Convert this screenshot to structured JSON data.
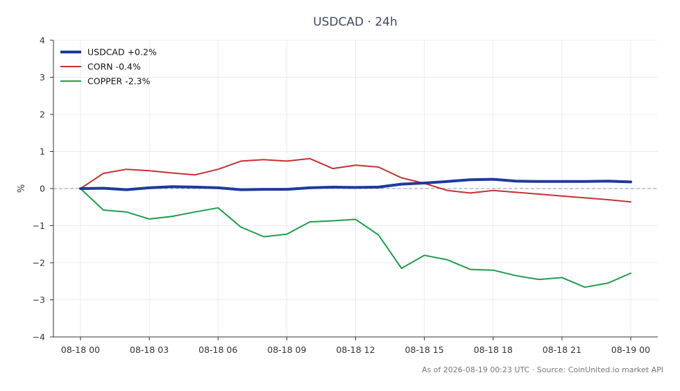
{
  "chart_data": {
    "type": "line",
    "title": "USDCAD · 24h",
    "xlabel": "",
    "ylabel": "%",
    "ylim": [
      -4,
      4
    ],
    "yticks": [
      "4",
      "3",
      "2",
      "1",
      "0",
      "−1",
      "−2",
      "−3",
      "−4"
    ],
    "xtick_labels": [
      "08-18 00",
      "08-18 03",
      "08-18 06",
      "08-18 09",
      "08-18 12",
      "08-18 15",
      "08-18 18",
      "08-18 21",
      "08-19 00"
    ],
    "x_hours": [
      0,
      1,
      2,
      3,
      4,
      5,
      6,
      7,
      8,
      9,
      10,
      11,
      12,
      13,
      14,
      15,
      16,
      17,
      18,
      19,
      20,
      21,
      22,
      23,
      24
    ],
    "grid": true,
    "legend_position": "top-left",
    "baseline": 0,
    "series": [
      {
        "name": "USDCAD +0.2%",
        "color": "#1f3a9c",
        "values": [
          0.0,
          0.01,
          -0.03,
          0.02,
          0.05,
          0.04,
          0.02,
          -0.03,
          -0.02,
          -0.02,
          0.02,
          0.04,
          0.03,
          0.04,
          0.12,
          0.15,
          0.19,
          0.24,
          0.25,
          0.2,
          0.19,
          0.19,
          0.19,
          0.2,
          0.18
        ]
      },
      {
        "name": "CORN -0.4%",
        "color": "#c62f33",
        "values": [
          0.0,
          0.41,
          0.52,
          0.48,
          0.42,
          0.37,
          0.52,
          0.74,
          0.78,
          0.74,
          0.81,
          0.54,
          0.63,
          0.58,
          0.29,
          0.14,
          -0.05,
          -0.12,
          -0.05,
          -0.1,
          -0.15,
          -0.2,
          -0.25,
          -0.3,
          -0.36
        ]
      },
      {
        "name": "COPPER -2.3%",
        "color": "#1e9c4a",
        "values": [
          0.0,
          -0.58,
          -0.63,
          -0.82,
          -0.75,
          -0.63,
          -0.52,
          -1.04,
          -1.3,
          -1.23,
          -0.9,
          -0.87,
          -0.83,
          -1.25,
          -2.15,
          -1.8,
          -1.92,
          -2.18,
          -2.2,
          -2.35,
          -2.45,
          -2.4,
          -2.66,
          -2.55,
          -2.28
        ]
      }
    ]
  },
  "footer": "As of 2026-08-19 00:23 UTC · Source: CoinUnited.io market API"
}
